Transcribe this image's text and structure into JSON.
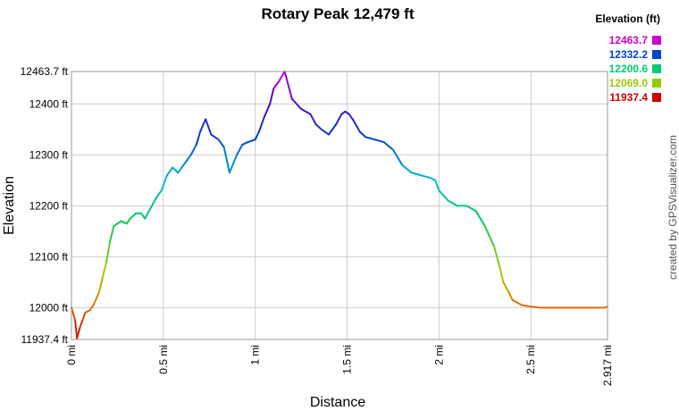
{
  "chart_data": {
    "type": "line",
    "title": "Rotary Peak 12,479 ft",
    "xlabel": "Distance",
    "ylabel": "Elevation",
    "credit": "created by GPSVisualizer.com",
    "xlim": [
      0,
      2.917
    ],
    "ylim": [
      11937.4,
      12463.7
    ],
    "x_ticks": [
      {
        "value": 0,
        "label": "0 mi"
      },
      {
        "value": 0.5,
        "label": "0.5 mi"
      },
      {
        "value": 1,
        "label": "1 mi"
      },
      {
        "value": 1.5,
        "label": "1.5 mi"
      },
      {
        "value": 2,
        "label": "2 mi"
      },
      {
        "value": 2.5,
        "label": "2.5 mi"
      },
      {
        "value": 2.917,
        "label": "2.917 mi"
      }
    ],
    "y_ticks": [
      {
        "value": 11937.4,
        "label": "11937.4 ft"
      },
      {
        "value": 12000,
        "label": "12000 ft"
      },
      {
        "value": 12100,
        "label": "12100 ft"
      },
      {
        "value": 12200,
        "label": "12200 ft"
      },
      {
        "value": 12300,
        "label": "12300 ft"
      },
      {
        "value": 12400,
        "label": "12400 ft"
      },
      {
        "value": 12463.7,
        "label": "12463.7 ft"
      }
    ],
    "grid": true,
    "legend": {
      "title": "Elevation (ft)",
      "position": "top-right",
      "entries": [
        {
          "label": "12463.7",
          "color": "#cc00cc"
        },
        {
          "label": "12332.2",
          "color": "#0044cc"
        },
        {
          "label": "12200.6",
          "color": "#00cc77"
        },
        {
          "label": "12069.0",
          "color": "#99cc00"
        },
        {
          "label": "11937.4",
          "color": "#cc0000"
        }
      ]
    },
    "series": [
      {
        "x": [
          0,
          0.02,
          0.03,
          0.045,
          0.06,
          0.075,
          0.1,
          0.12,
          0.15,
          0.17,
          0.19,
          0.21,
          0.23,
          0.25,
          0.27,
          0.3,
          0.32,
          0.35,
          0.38,
          0.4,
          0.43,
          0.46,
          0.49,
          0.52,
          0.55,
          0.58,
          0.6,
          0.63,
          0.65,
          0.68,
          0.7,
          0.73,
          0.76,
          0.8,
          0.83,
          0.86,
          0.9,
          0.93,
          0.96,
          1.0,
          1.02,
          1.05,
          1.08,
          1.1,
          1.13,
          1.16,
          1.2,
          1.25,
          1.3,
          1.33,
          1.36,
          1.4,
          1.44,
          1.47,
          1.49,
          1.51,
          1.53,
          1.57,
          1.6,
          1.65,
          1.7,
          1.75,
          1.8,
          1.85,
          1.9,
          1.95,
          1.98,
          2.0,
          2.05,
          2.1,
          2.15,
          2.2,
          2.25,
          2.3,
          2.33,
          2.35,
          2.38,
          2.4,
          2.45,
          2.5,
          2.55,
          2.6,
          2.62,
          2.65,
          2.68,
          2.7,
          2.72,
          2.75,
          2.8,
          2.83,
          2.86,
          2.9,
          2.917
        ],
        "y": [
          12000,
          11975,
          11940,
          11960,
          11975,
          11990,
          11995,
          12005,
          12030,
          12060,
          12090,
          12130,
          12160,
          12165,
          12170,
          12165,
          12175,
          12185,
          12185,
          12175,
          12195,
          12215,
          12230,
          12260,
          12275,
          12265,
          12275,
          12290,
          12300,
          12320,
          12345,
          12370,
          12340,
          12330,
          12315,
          12265,
          12300,
          12320,
          12325,
          12330,
          12345,
          12375,
          12400,
          12430,
          12445,
          12463.7,
          12410,
          12390,
          12380,
          12360,
          12350,
          12340,
          12360,
          12380,
          12385,
          12380,
          12370,
          12345,
          12335,
          12330,
          12325,
          12310,
          12280,
          12265,
          12260,
          12255,
          12250,
          12230,
          12210,
          12200,
          12200,
          12190,
          12160,
          12120,
          12080,
          12050,
          12030,
          12015,
          12005,
          12002,
          12000,
          12000,
          12000,
          12000,
          12000,
          12000,
          12000,
          12000,
          12000,
          12000,
          12000,
          12000,
          12002
        ]
      }
    ]
  }
}
